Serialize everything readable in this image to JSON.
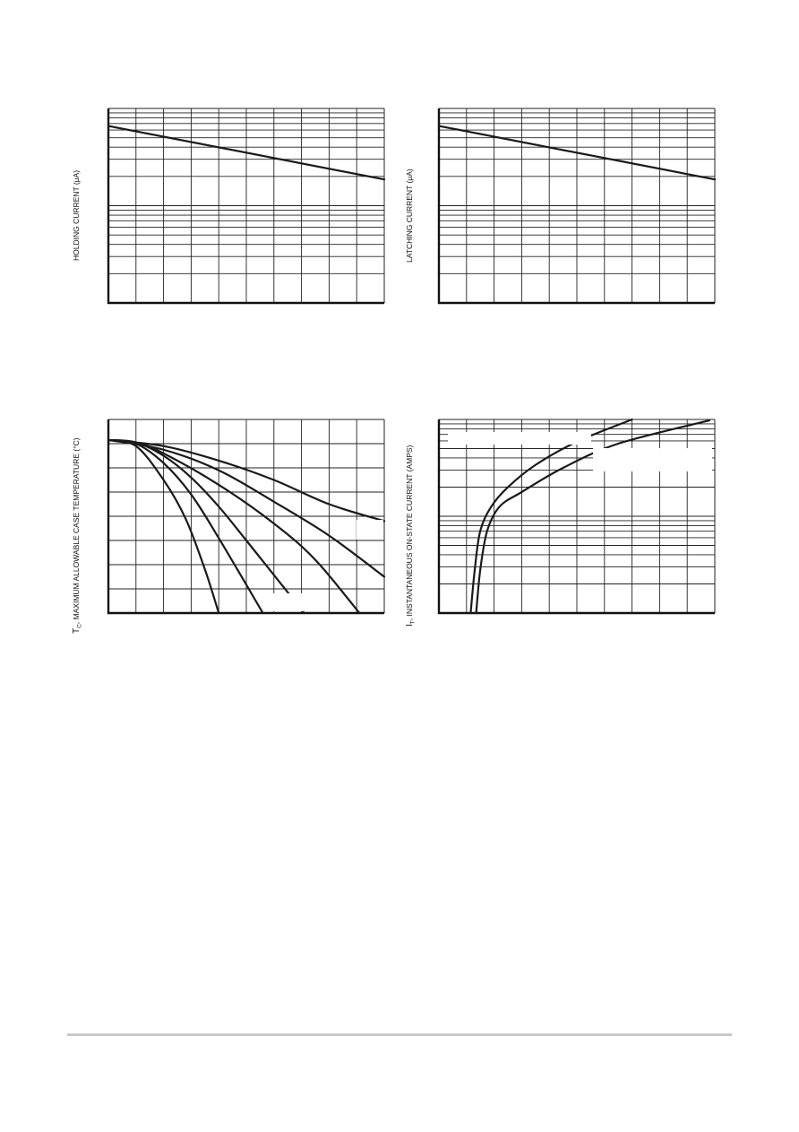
{
  "charts": [
    {
      "ylabel": "HOLDING CURRENT (μA)"
    },
    {
      "ylabel": "LATCHING CURRENT (μA)"
    },
    {
      "ylabel_prefix": "T",
      "ylabel_sub": "C",
      "ylabel_rest": ", MAXIMUM ALLOWABLE CASE TEMPERATURE (°C)"
    },
    {
      "ylabel_prefix": "I",
      "ylabel_sub": "T",
      "ylabel_rest": ", INSTANTANEOUS ON-STATE CURRENT (AMPS)"
    }
  ],
  "chart_data": [
    {
      "type": "line",
      "title": "",
      "xlabel": "",
      "ylabel": "HOLDING CURRENT (μA)",
      "yscale": "log",
      "grid": true,
      "xlim": [
        0,
        10
      ],
      "ylim_decades": [
        0,
        2
      ],
      "series": [
        {
          "x": [
            0,
            10
          ],
          "y_decade_frac": [
            1.82,
            1.27
          ]
        }
      ]
    },
    {
      "type": "line",
      "title": "",
      "xlabel": "",
      "ylabel": "LATCHING CURRENT (μA)",
      "yscale": "log",
      "grid": true,
      "xlim": [
        0,
        10
      ],
      "ylim_decades": [
        0,
        2
      ],
      "series": [
        {
          "x": [
            0,
            10
          ],
          "y_decade_frac": [
            1.82,
            1.27
          ]
        }
      ]
    },
    {
      "type": "line",
      "title": "",
      "xlabel": "",
      "ylabel": "TC, MAXIMUM ALLOWABLE CASE TEMPERATURE (°C)",
      "grid": true,
      "xlim": [
        0,
        10
      ],
      "ylim": [
        0,
        8
      ],
      "series": [
        {
          "x": [
            0,
            1,
            2,
            2.8,
            3.5,
            4.0
          ],
          "y": [
            7.15,
            6.9,
            5.5,
            3.9,
            1.8,
            0
          ]
        },
        {
          "x": [
            0,
            1,
            2,
            3,
            4,
            5.6
          ],
          "y": [
            7.15,
            7.0,
            6.2,
            4.9,
            3.1,
            0
          ]
        },
        {
          "x": [
            0,
            1,
            2,
            3,
            4,
            5,
            7.1
          ],
          "y": [
            7.15,
            7.05,
            6.5,
            5.6,
            4.4,
            3.0,
            0
          ]
        },
        {
          "x": [
            0,
            1,
            2,
            4,
            6,
            7.5,
            9.1
          ],
          "y": [
            7.15,
            7.05,
            6.6,
            5.3,
            3.7,
            2.2,
            0
          ]
        },
        {
          "x": [
            0,
            2,
            4,
            6,
            8,
            10
          ],
          "y": [
            7.15,
            6.75,
            5.9,
            4.6,
            3.2,
            1.5
          ]
        },
        {
          "x": [
            0,
            2,
            4,
            6,
            8,
            10
          ],
          "y": [
            7.15,
            6.9,
            6.3,
            5.5,
            4.5,
            3.8
          ]
        }
      ]
    },
    {
      "type": "line",
      "title": "",
      "xlabel": "",
      "ylabel": "IT, INSTANTANEOUS ON-STATE CURRENT (AMPS)",
      "yscale": "log",
      "grid": true,
      "xlim": [
        0,
        10
      ],
      "ylim_decades": [
        0,
        2
      ],
      "series": [
        {
          "x": [
            1.15,
            1.3,
            1.5,
            1.9,
            2.5,
            3.5,
            5.0,
            7.0
          ],
          "y_decade_frac": [
            0,
            0.45,
            0.85,
            1.1,
            1.3,
            1.53,
            1.77,
            2.0
          ]
        },
        {
          "x": [
            1.35,
            1.5,
            1.75,
            2.2,
            3.0,
            4.5,
            6.5,
            9.8
          ],
          "y_decade_frac": [
            0,
            0.45,
            0.85,
            1.1,
            1.25,
            1.5,
            1.75,
            1.99
          ]
        }
      ]
    }
  ]
}
